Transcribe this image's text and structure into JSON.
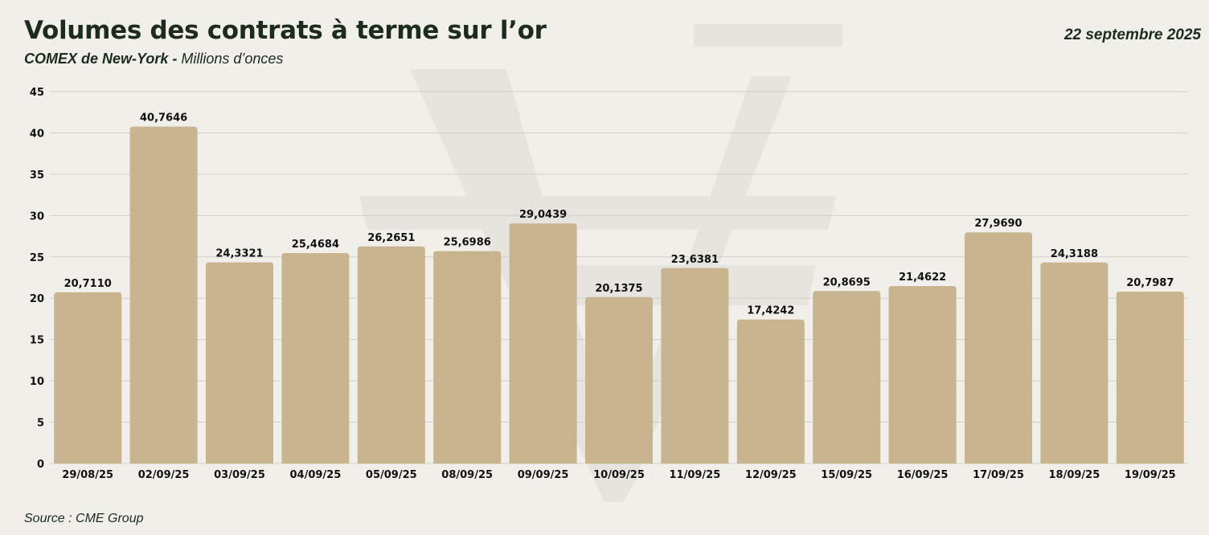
{
  "header": {
    "title": "Volumes des contrats à terme sur l’or",
    "subtitle_bold": "COMEX de New-York -",
    "subtitle_rest": " Millions d’onces",
    "date": "22 septembre 2025"
  },
  "footer": {
    "source": "Source : CME Group"
  },
  "colors": {
    "bar": "#c8b48e",
    "grid": "#cfcfca",
    "text": "#1c2b1c",
    "background": "#f0efea",
    "watermark": "#e3e2dc"
  },
  "chart_data": {
    "type": "bar",
    "title": "Volumes des contrats à terme sur l’or",
    "subtitle": "COMEX de New-York - Millions d’onces",
    "categories": [
      "29/08/25",
      "02/09/25",
      "03/09/25",
      "04/09/25",
      "05/09/25",
      "08/09/25",
      "09/09/25",
      "10/09/25",
      "11/09/25",
      "12/09/25",
      "15/09/25",
      "16/09/25",
      "17/09/25",
      "18/09/25",
      "19/09/25"
    ],
    "values": [
      20.711,
      40.7646,
      24.3321,
      25.4684,
      26.2651,
      25.6986,
      29.0439,
      20.1375,
      23.6381,
      17.4242,
      20.8695,
      21.4622,
      27.969,
      24.3188,
      20.7987
    ],
    "value_labels": [
      "20,7110",
      "40,7646",
      "24,3321",
      "25,4684",
      "26,2651",
      "25,6986",
      "29,0439",
      "20,1375",
      "23,6381",
      "17,4242",
      "20,8695",
      "21,4622",
      "27,9690",
      "24,3188",
      "20,7987"
    ],
    "yticks": [
      "0",
      "5",
      "10",
      "15",
      "20",
      "25",
      "30",
      "35",
      "40",
      "45"
    ],
    "ylim": [
      0,
      45
    ],
    "xlabel": "",
    "ylabel": "",
    "grid": true,
    "legend": "none"
  }
}
